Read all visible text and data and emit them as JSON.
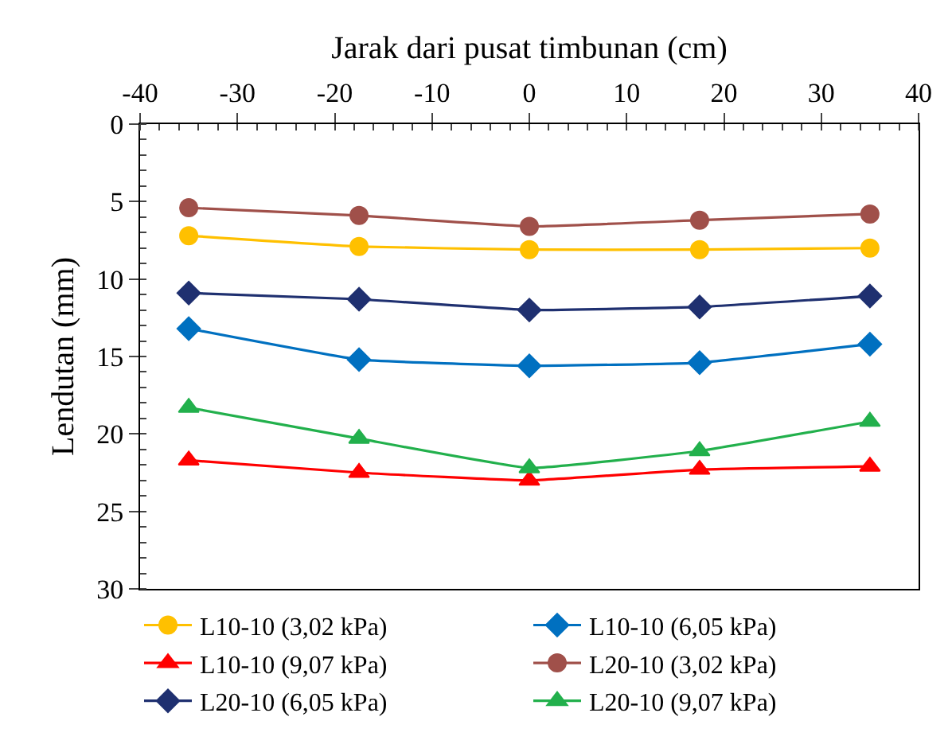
{
  "chart_data": {
    "type": "line",
    "xlabel": "Jarak dari pusat timbunan (cm)",
    "ylabel": "Lendutan (mm)",
    "x": [
      -35,
      -17.5,
      0,
      17.5,
      35
    ],
    "xlim": [
      -40,
      40
    ],
    "xticks": [
      -40,
      -30,
      -20,
      -10,
      0,
      10,
      20,
      30,
      40
    ],
    "ylim": [
      30,
      0
    ],
    "yticks": [
      0,
      5,
      10,
      15,
      20,
      25,
      30
    ],
    "grid": false,
    "legend": "bottom",
    "series": [
      {
        "name": "L10-10 (3,02 kPa)",
        "color": "#ffc000",
        "marker": "circle",
        "values": [
          7.2,
          7.9,
          8.1,
          8.1,
          8.0
        ]
      },
      {
        "name": "L10-10 (6,05 kPa)",
        "color": "#0070c0",
        "marker": "diamond",
        "values": [
          13.2,
          15.2,
          15.6,
          15.4,
          14.2
        ]
      },
      {
        "name": "L10-10 (9,07 kPa)",
        "color": "#ff0000",
        "marker": "triangle",
        "values": [
          21.7,
          22.5,
          23.0,
          22.3,
          22.1
        ]
      },
      {
        "name": "L20-10 (3,02 kPa)",
        "color": "#a0504a",
        "marker": "circle",
        "values": [
          5.4,
          5.9,
          6.6,
          6.2,
          5.8
        ]
      },
      {
        "name": "L20-10 (6,05 kPa)",
        "color": "#1f3070",
        "marker": "diamond",
        "values": [
          10.9,
          11.3,
          12.0,
          11.8,
          11.1
        ]
      },
      {
        "name": "L20-10 (9,07 kPa)",
        "color": "#22b04c",
        "marker": "triangle",
        "values": [
          18.3,
          20.3,
          22.2,
          21.1,
          19.2
        ]
      }
    ]
  }
}
